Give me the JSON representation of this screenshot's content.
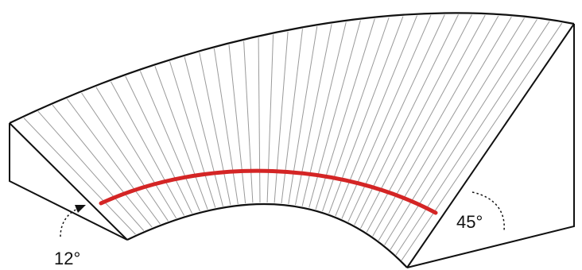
{
  "labels": {
    "left_angle": "12°",
    "right_angle": "45°"
  },
  "colors": {
    "outline": "#111111",
    "hatch": "#9a9a9a",
    "curve": "#d42525",
    "background": "#ffffff"
  },
  "hatch_line_count": 40
}
